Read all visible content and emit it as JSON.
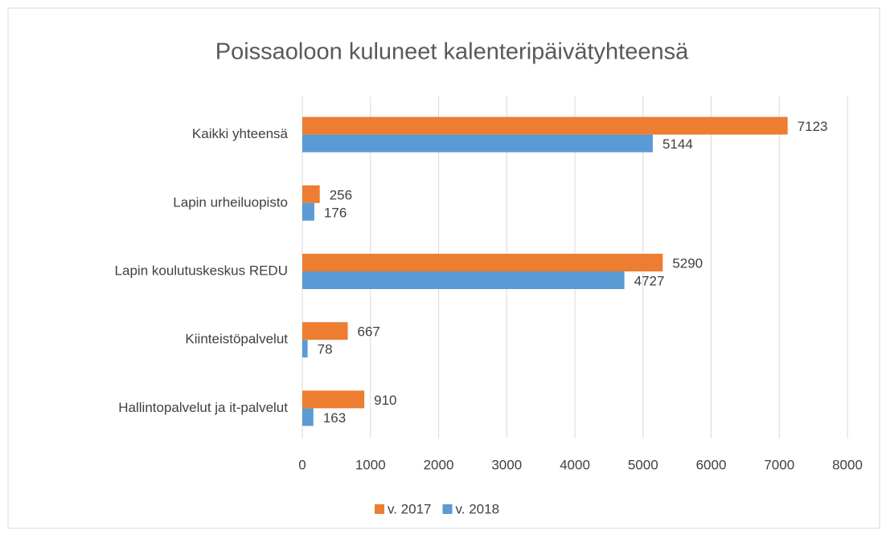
{
  "chart_data": {
    "type": "bar",
    "orientation": "horizontal",
    "title": "Poissaoloon kuluneet kalenteripäivätyhteensä",
    "categories": [
      "Kaikki yhteensä",
      "Lapin urheiluopisto",
      "Lapin koulutuskeskus REDU",
      "Kiinteistöpalvelut",
      "Hallintopalvelut ja it-palvelut"
    ],
    "series": [
      {
        "name": "v. 2017",
        "color": "#ed7d31",
        "values": [
          7123,
          256,
          5290,
          667,
          910
        ]
      },
      {
        "name": "v. 2018",
        "color": "#5b9bd5",
        "values": [
          5144,
          176,
          4727,
          78,
          163
        ]
      }
    ],
    "xlim": [
      0,
      8000
    ],
    "xticks": [
      0,
      1000,
      2000,
      3000,
      4000,
      5000,
      6000,
      7000,
      8000
    ],
    "grid": true,
    "legend": "bottom"
  }
}
